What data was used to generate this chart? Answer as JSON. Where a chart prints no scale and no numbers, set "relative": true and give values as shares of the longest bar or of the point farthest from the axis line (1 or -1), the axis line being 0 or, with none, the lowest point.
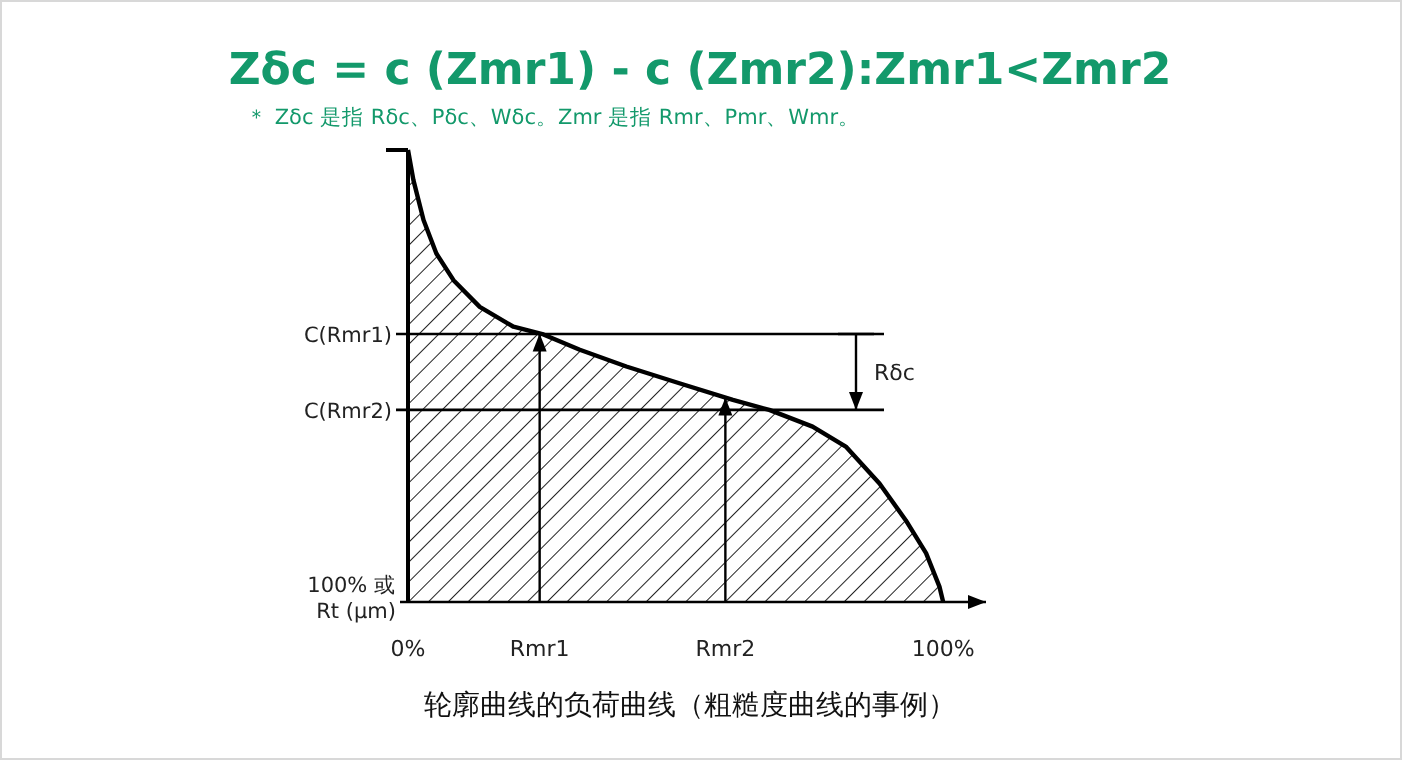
{
  "chart_data": {
    "type": "area",
    "relative": true,
    "title": "Zδc = c (Zmr1) - c (Zmr2):Zmr1<Zmr2",
    "subtitle": "＊ Zδc 是指 Rδc、Pδc、Wδc。Zmr 是指 Rmr、Pmr、Wmr。",
    "ylabel": "100% 或 Rt (μm)",
    "annotations": [
      "Rδc",
      "轮廓曲线的负荷曲线（粗糙度曲线的事例）"
    ],
    "x": [
      0,
      1.0,
      2.9,
      5.3,
      8.5,
      13.4,
      19.7,
      25.3,
      32.1,
      40.8,
      50.7,
      60.7,
      67.5,
      75.6,
      81.8,
      88.1,
      93.0,
      96.8,
      99.3,
      100
    ],
    "xlim": [
      0,
      108
    ],
    "xticks": [
      {
        "value": 0,
        "label": "0%"
      },
      {
        "value": 24.6,
        "label": "Rmr1"
      },
      {
        "value": 59.3,
        "label": "Rmr2"
      },
      {
        "value": 100,
        "label": "100%"
      }
    ],
    "series": [
      {
        "color": "#000000",
        "values": [
          1,
          0.934,
          0.845,
          0.771,
          0.712,
          0.653,
          0.609,
          0.592,
          0.558,
          0.521,
          0.484,
          0.447,
          0.425,
          0.388,
          0.344,
          0.262,
          0.181,
          0.108,
          0.034,
          0
        ]
      }
    ],
    "ref_lines": [
      {
        "axis": "y",
        "value": 0.593,
        "label": "C(Rmr1)"
      },
      {
        "axis": "y",
        "value": 0.425,
        "label": "C(Rmr2)"
      },
      {
        "axis": "x",
        "value": 24.6
      },
      {
        "axis": "x",
        "value": 59.3
      }
    ]
  }
}
